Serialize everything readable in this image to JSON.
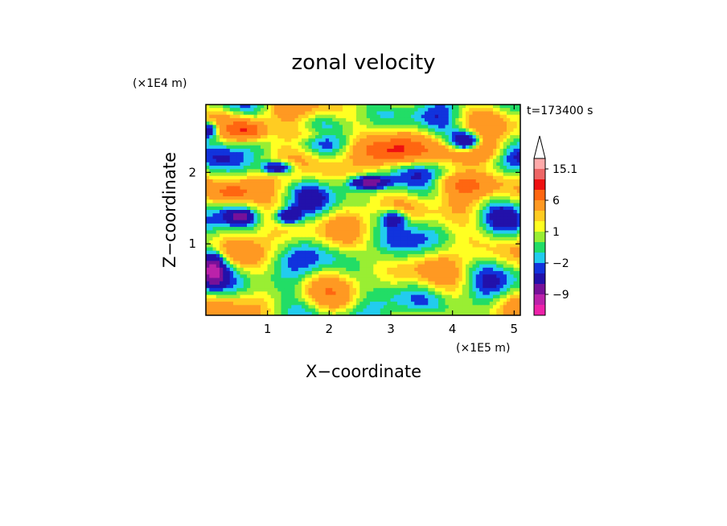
{
  "chart_data": {
    "type": "heatmap",
    "title": "zonal velocity",
    "xlabel": "X−coordinate",
    "ylabel": "Z−coordinate",
    "x_scale_label": "(×1E5 m)",
    "y_scale_label": "(×1E4 m)",
    "time_label": "t=173400 s",
    "xlim": [
      0,
      5.1
    ],
    "ylim": [
      0,
      2.95
    ],
    "x_ticks": [
      1,
      2,
      3,
      4,
      5
    ],
    "y_ticks": [
      1,
      2
    ],
    "colorbar": {
      "labels": [
        "15.1",
        "6",
        "1",
        "−2",
        "−9"
      ],
      "label_values": [
        15.1,
        6,
        1,
        -2,
        -9
      ],
      "levels": [
        -15,
        -12,
        -9,
        -6,
        -3,
        -2,
        -1,
        0,
        1,
        2,
        3,
        6,
        9,
        12,
        15.1
      ],
      "colors": [
        "#ee22aa",
        "#bb22aa",
        "#771199",
        "#2211aa",
        "#1133dd",
        "#22ccee",
        "#22dd66",
        "#99ee33",
        "#ffff22",
        "#ffcc22",
        "#ff9922",
        "#ff6611",
        "#ee1111",
        "#ee6666",
        "#ffaaaa"
      ],
      "extend": "max"
    }
  }
}
